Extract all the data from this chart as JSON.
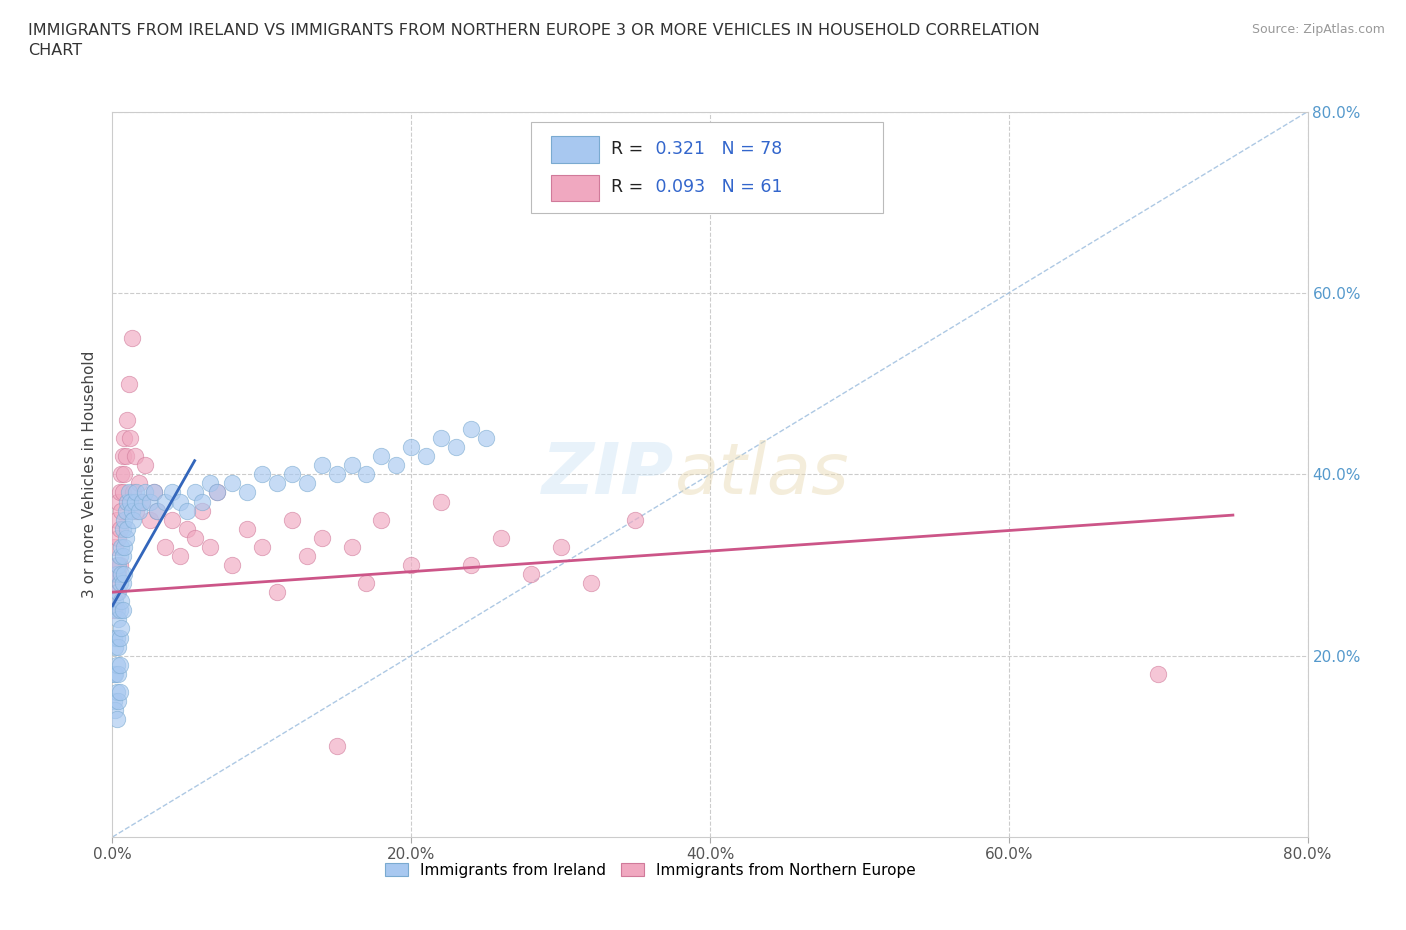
{
  "title": "IMMIGRANTS FROM IRELAND VS IMMIGRANTS FROM NORTHERN EUROPE 3 OR MORE VEHICLES IN HOUSEHOLD CORRELATION\nCHART",
  "source": "Source: ZipAtlas.com",
  "ylabel": "3 or more Vehicles in Household",
  "xlim": [
    0.0,
    0.8
  ],
  "ylim": [
    0.0,
    0.8
  ],
  "xtick_labels": [
    "0.0%",
    "20.0%",
    "40.0%",
    "60.0%",
    "80.0%"
  ],
  "xtick_vals": [
    0.0,
    0.2,
    0.4,
    0.6,
    0.8
  ],
  "ytick_labels": [
    "20.0%",
    "40.0%",
    "60.0%",
    "80.0%"
  ],
  "ytick_vals": [
    0.2,
    0.4,
    0.6,
    0.8
  ],
  "hline_vals": [
    0.2,
    0.4,
    0.6,
    0.8
  ],
  "vline_vals": [
    0.2,
    0.4,
    0.6,
    0.8
  ],
  "ireland_color": "#a8c8f0",
  "ireland_edge": "#7aaad0",
  "northern_eu_color": "#f0a8c0",
  "northern_eu_edge": "#d07a9a",
  "ireland_R": 0.321,
  "ireland_N": 78,
  "northern_eu_R": 0.093,
  "northern_eu_N": 61,
  "ireland_trendline_color": "#3366bb",
  "northern_eu_trendline_color": "#cc5588",
  "diagonal_color": "#99bbdd",
  "legend_ireland_label": "Immigrants from Ireland",
  "legend_northern_label": "Immigrants from Northern Europe",
  "ireland_x": [
    0.001,
    0.001,
    0.001,
    0.002,
    0.002,
    0.002,
    0.002,
    0.003,
    0.003,
    0.003,
    0.003,
    0.003,
    0.003,
    0.004,
    0.004,
    0.004,
    0.004,
    0.004,
    0.004,
    0.005,
    0.005,
    0.005,
    0.005,
    0.005,
    0.005,
    0.006,
    0.006,
    0.006,
    0.006,
    0.007,
    0.007,
    0.007,
    0.007,
    0.008,
    0.008,
    0.008,
    0.009,
    0.009,
    0.01,
    0.01,
    0.011,
    0.012,
    0.013,
    0.014,
    0.015,
    0.016,
    0.018,
    0.02,
    0.022,
    0.025,
    0.028,
    0.03,
    0.035,
    0.04,
    0.045,
    0.05,
    0.055,
    0.06,
    0.065,
    0.07,
    0.08,
    0.09,
    0.1,
    0.11,
    0.12,
    0.13,
    0.14,
    0.15,
    0.16,
    0.17,
    0.18,
    0.19,
    0.2,
    0.21,
    0.22,
    0.23,
    0.24,
    0.25
  ],
  "ireland_y": [
    0.22,
    0.18,
    0.15,
    0.26,
    0.21,
    0.18,
    0.14,
    0.29,
    0.25,
    0.22,
    0.19,
    0.16,
    0.13,
    0.3,
    0.27,
    0.24,
    0.21,
    0.18,
    0.15,
    0.31,
    0.28,
    0.25,
    0.22,
    0.19,
    0.16,
    0.32,
    0.29,
    0.26,
    0.23,
    0.34,
    0.31,
    0.28,
    0.25,
    0.35,
    0.32,
    0.29,
    0.36,
    0.33,
    0.37,
    0.34,
    0.38,
    0.37,
    0.36,
    0.35,
    0.37,
    0.38,
    0.36,
    0.37,
    0.38,
    0.37,
    0.38,
    0.36,
    0.37,
    0.38,
    0.37,
    0.36,
    0.38,
    0.37,
    0.39,
    0.38,
    0.39,
    0.38,
    0.4,
    0.39,
    0.4,
    0.39,
    0.41,
    0.4,
    0.41,
    0.4,
    0.42,
    0.41,
    0.43,
    0.42,
    0.44,
    0.43,
    0.45,
    0.44
  ],
  "northern_x": [
    0.001,
    0.001,
    0.002,
    0.002,
    0.003,
    0.003,
    0.003,
    0.004,
    0.004,
    0.004,
    0.005,
    0.005,
    0.005,
    0.006,
    0.006,
    0.007,
    0.007,
    0.008,
    0.008,
    0.009,
    0.01,
    0.011,
    0.012,
    0.013,
    0.014,
    0.015,
    0.016,
    0.018,
    0.02,
    0.022,
    0.025,
    0.028,
    0.03,
    0.035,
    0.04,
    0.045,
    0.05,
    0.055,
    0.06,
    0.065,
    0.07,
    0.08,
    0.09,
    0.1,
    0.11,
    0.12,
    0.13,
    0.14,
    0.15,
    0.16,
    0.17,
    0.18,
    0.2,
    0.22,
    0.24,
    0.26,
    0.28,
    0.3,
    0.32,
    0.35,
    0.7
  ],
  "northern_y": [
    0.29,
    0.25,
    0.32,
    0.28,
    0.35,
    0.3,
    0.27,
    0.37,
    0.33,
    0.29,
    0.38,
    0.34,
    0.3,
    0.4,
    0.36,
    0.42,
    0.38,
    0.44,
    0.4,
    0.42,
    0.46,
    0.5,
    0.44,
    0.55,
    0.38,
    0.42,
    0.36,
    0.39,
    0.37,
    0.41,
    0.35,
    0.38,
    0.36,
    0.32,
    0.35,
    0.31,
    0.34,
    0.33,
    0.36,
    0.32,
    0.38,
    0.3,
    0.34,
    0.32,
    0.27,
    0.35,
    0.31,
    0.33,
    0.1,
    0.32,
    0.28,
    0.35,
    0.3,
    0.37,
    0.3,
    0.33,
    0.29,
    0.32,
    0.28,
    0.35,
    0.18
  ],
  "ireland_trend_x": [
    0.0,
    0.055
  ],
  "ireland_trend_y": [
    0.255,
    0.415
  ],
  "northern_trend_x": [
    0.0,
    0.75
  ],
  "northern_trend_y": [
    0.27,
    0.355
  ]
}
